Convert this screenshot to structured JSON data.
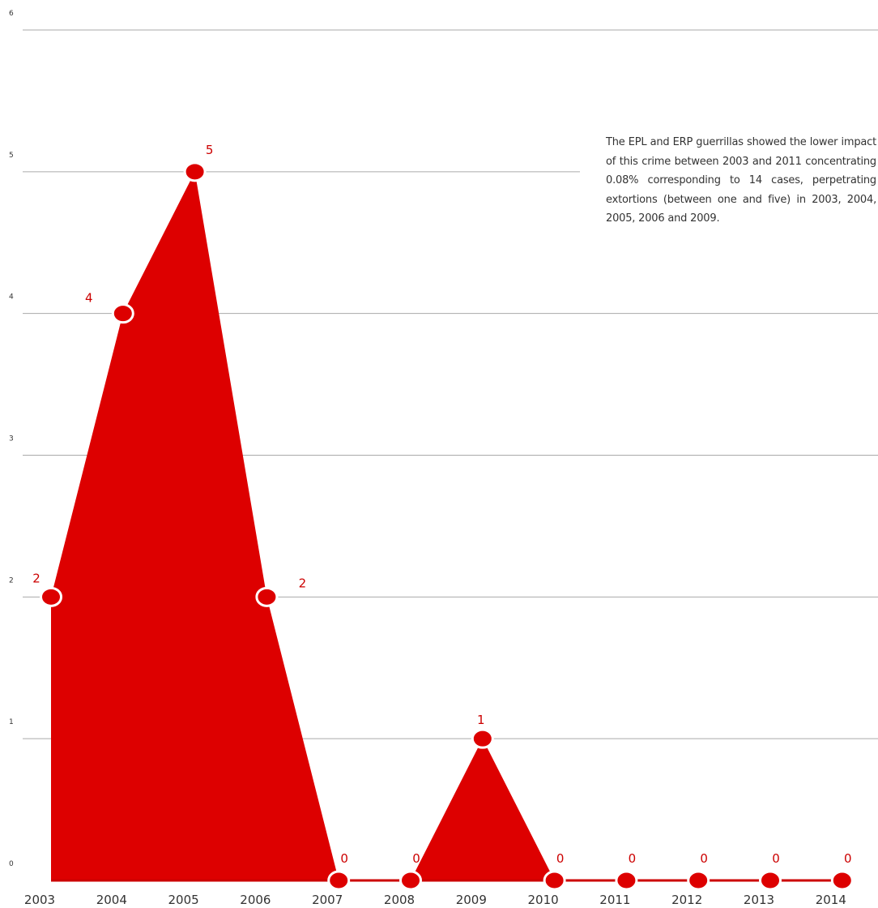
{
  "chart_data": {
    "type": "area",
    "categories": [
      "2003",
      "2004",
      "2005",
      "2006",
      "2007",
      "2008",
      "2009",
      "2010",
      "2011",
      "2012",
      "2013",
      "2014"
    ],
    "series": [
      {
        "values": [
          2,
          4,
          5,
          2,
          0,
          0,
          1,
          0,
          0,
          0,
          0,
          0
        ]
      }
    ],
    "data_labels": [
      "2",
      "4",
      "5",
      "2",
      "0",
      "0",
      "1",
      "0",
      "0",
      "0",
      "0",
      "0"
    ],
    "yticks": [
      "0",
      "1",
      "2",
      "3",
      "4",
      "5",
      "6"
    ],
    "ylim": [
      0,
      6
    ],
    "grid": true,
    "legend": "none",
    "annotation": "The EPL and ERP guerrillas showed the lower impact of this crime between 2003 and 2011 concentrating 0.08% corresponding to 14 cases, perpetrating extortions (between one and five) in 2003, 2004, 2005, 2006 and 2009.",
    "colors": {
      "fill": "#dd0000",
      "line": "#cc0000",
      "marker": "#dd0000",
      "marker_stroke": "#ffffff",
      "grid": "#aaaaaa",
      "label": "#cc0000"
    }
  }
}
